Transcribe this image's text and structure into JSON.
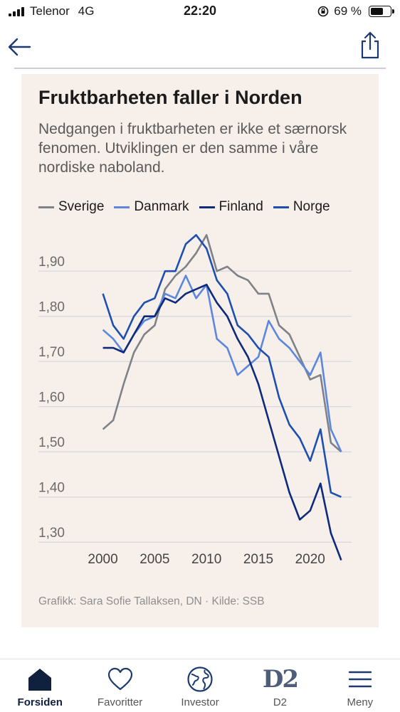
{
  "status": {
    "carrier": "Telenor",
    "network": "4G",
    "time": "22:20",
    "battery": "69 %",
    "battery_level": 0.69
  },
  "nav": {
    "back_icon": "arrow-left-icon",
    "share_icon": "share-icon"
  },
  "chart_header": {
    "title": "Fruktbarheten faller i Norden",
    "subtitle": "Nedgangen i fruktbarheten er ikke et særnorsk fenomen. Utviklingen er den samme i våre nordiske naboland.",
    "credit": "Grafikk: Sara Sofie Tallaksen, DN · Kilde: SSB"
  },
  "chart_data": {
    "type": "line",
    "x": [
      2000,
      2001,
      2002,
      2003,
      2004,
      2005,
      2006,
      2007,
      2008,
      2009,
      2010,
      2011,
      2012,
      2013,
      2014,
      2015,
      2016,
      2017,
      2018,
      2019,
      2020,
      2021,
      2022,
      2023
    ],
    "xticks": [
      "2000",
      "2005",
      "2010",
      "2015",
      "2020"
    ],
    "yticks": [
      "1,30",
      "1,40",
      "1,50",
      "1,60",
      "1,70",
      "1,80",
      "1,90"
    ],
    "ylim": [
      1.25,
      1.99
    ],
    "xlim": [
      1999,
      2024
    ],
    "grid": true,
    "legend_position": "top",
    "series": [
      {
        "name": "Sverige",
        "color": "#7f8286",
        "values": [
          1.55,
          1.57,
          1.65,
          1.72,
          1.76,
          1.78,
          1.86,
          1.89,
          1.91,
          1.94,
          1.98,
          1.9,
          1.91,
          1.89,
          1.88,
          1.85,
          1.85,
          1.78,
          1.76,
          1.71,
          1.66,
          1.67,
          1.52,
          1.5
        ]
      },
      {
        "name": "Danmark",
        "color": "#5d87de",
        "values": [
          1.77,
          1.75,
          1.72,
          1.76,
          1.79,
          1.8,
          1.85,
          1.84,
          1.89,
          1.84,
          1.87,
          1.75,
          1.73,
          1.67,
          1.69,
          1.71,
          1.79,
          1.75,
          1.73,
          1.7,
          1.67,
          1.72,
          1.55,
          1.5
        ]
      },
      {
        "name": "Finland",
        "color": "#0e2a7c",
        "values": [
          1.73,
          1.73,
          1.72,
          1.76,
          1.8,
          1.8,
          1.84,
          1.83,
          1.85,
          1.86,
          1.87,
          1.83,
          1.8,
          1.75,
          1.71,
          1.65,
          1.57,
          1.49,
          1.41,
          1.35,
          1.37,
          1.43,
          1.32,
          1.26
        ]
      },
      {
        "name": "Norge",
        "color": "#1d4fb0",
        "values": [
          1.85,
          1.78,
          1.75,
          1.8,
          1.83,
          1.84,
          1.9,
          1.9,
          1.96,
          1.98,
          1.95,
          1.88,
          1.85,
          1.78,
          1.76,
          1.73,
          1.71,
          1.62,
          1.56,
          1.53,
          1.48,
          1.55,
          1.41,
          1.4
        ]
      }
    ]
  },
  "tabs": [
    {
      "label": "Forsiden",
      "icon": "home-icon",
      "active": true
    },
    {
      "label": "Favoritter",
      "icon": "heart-icon",
      "active": false
    },
    {
      "label": "Investor",
      "icon": "globe-icon",
      "active": false
    },
    {
      "label": "D2",
      "icon": "d2-logo",
      "active": false
    },
    {
      "label": "Meny",
      "icon": "menu-icon",
      "active": false
    }
  ],
  "d2_text": "D2"
}
